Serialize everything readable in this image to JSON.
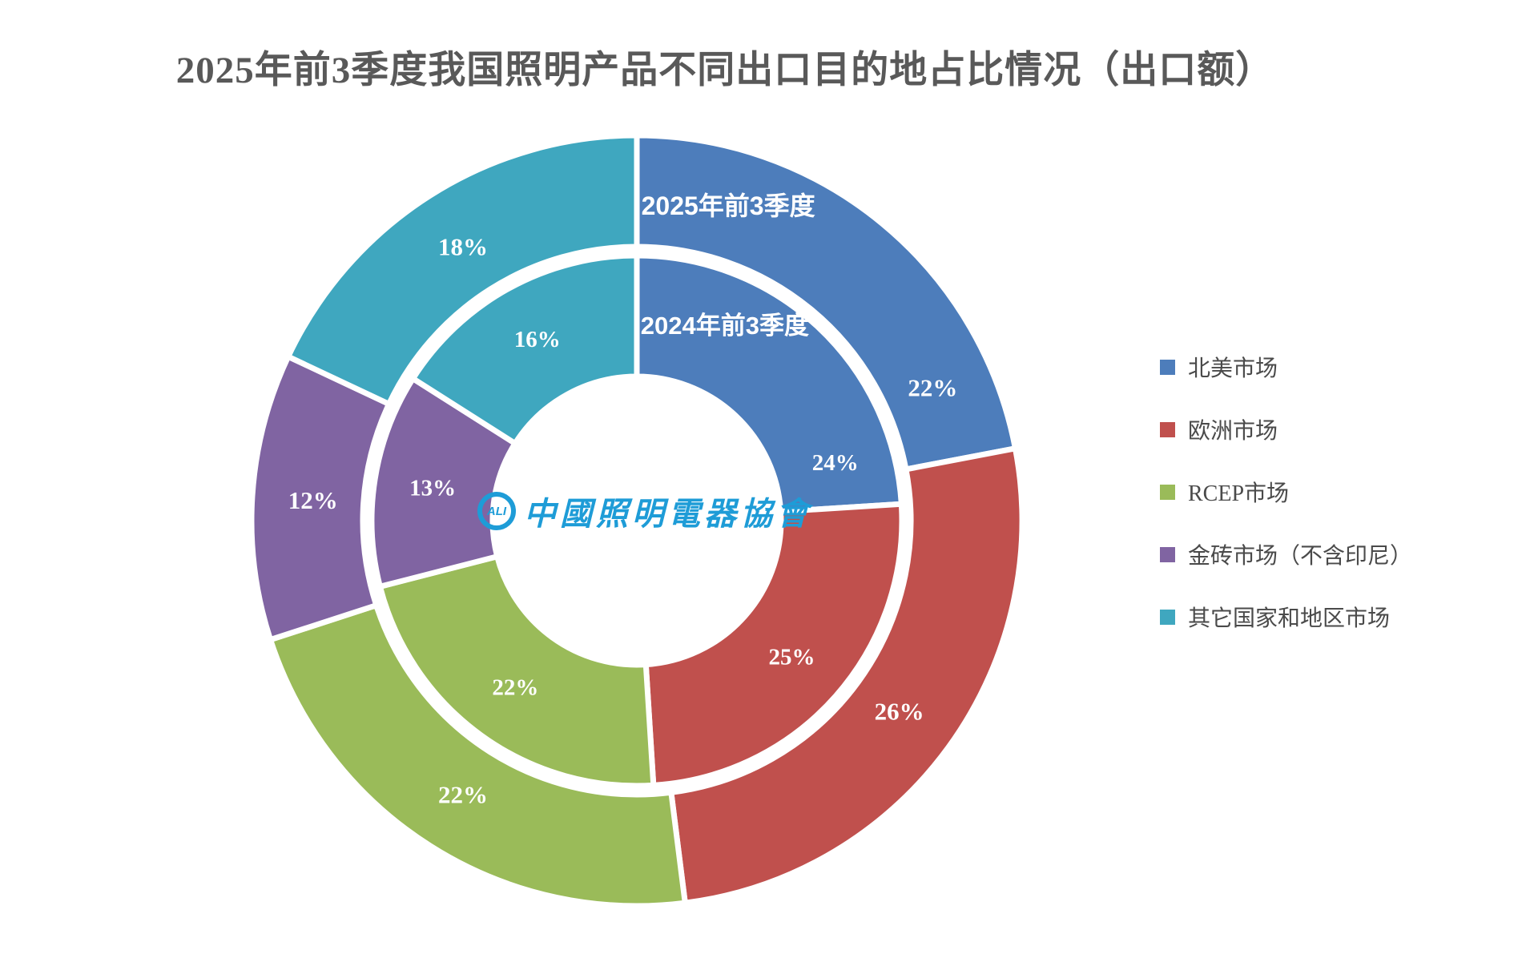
{
  "header": {
    "title": "2025年前3季度我国照明产品不同出口目的地占比情况（出口额）"
  },
  "chart_data": {
    "type": "pie",
    "subtype": "nested-donut",
    "title": "2025年前3季度我国照明产品不同出口目的地占比情况（出口额）",
    "categories": [
      "北美市场",
      "欧洲市场",
      "RCEP市场",
      "金砖市场（不含印尼）",
      "其它国家和地区市场"
    ],
    "colors": [
      "#4D7DBB",
      "#C0504D",
      "#9ABB59",
      "#8064A2",
      "#3FA7BF"
    ],
    "rings": [
      {
        "name": "2025年前3季度",
        "position": "outer",
        "values": [
          22,
          26,
          22,
          12,
          18
        ],
        "labels": [
          "22%",
          "26%",
          "22%",
          "12%",
          "18%"
        ]
      },
      {
        "name": "2024年前3季度",
        "position": "inner",
        "values": [
          24,
          25,
          22,
          13,
          16
        ],
        "labels": [
          "24%",
          "25%",
          "22%",
          "13%",
          "16%"
        ]
      }
    ],
    "legend_position": "right",
    "label_format": "percent",
    "start_angle_deg": 0,
    "direction": "clockwise",
    "label_layout": {
      "outer": {
        "first_label_angle": 65.8,
        "title_angle": 16.2,
        "title_radius": 409
      },
      "inner": {
        "first_label_angle": 73.8,
        "title_angle": 24.3,
        "title_radius": 267
      }
    }
  },
  "legend": {
    "items": [
      {
        "label": "北美市场",
        "color": "#4D7DBB"
      },
      {
        "label": "欧洲市场",
        "color": "#C0504D"
      },
      {
        "label": "RCEP市场",
        "color": "#9ABB59"
      },
      {
        "label": "金砖市场（不含印尼）",
        "color": "#8064A2"
      },
      {
        "label": "其它国家和地区市场",
        "color": "#3FA7BF"
      }
    ]
  },
  "logo": {
    "badge": "ALI",
    "text": "中國照明電器協會",
    "color": "#1e9cd7"
  }
}
